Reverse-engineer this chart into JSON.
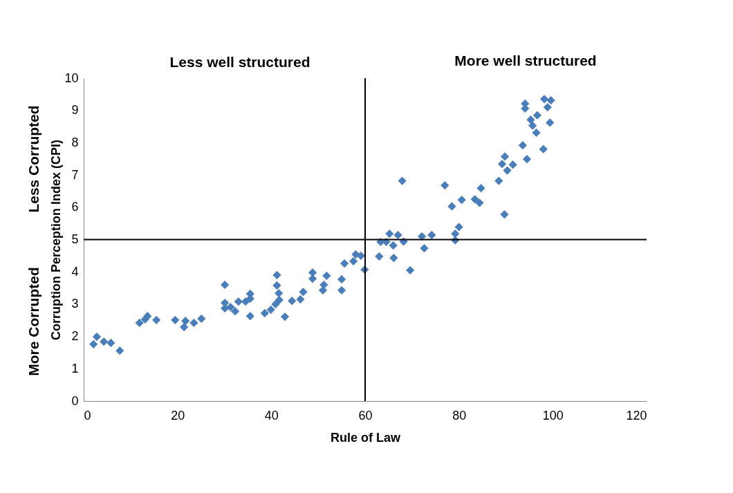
{
  "chart_data": {
    "type": "scatter",
    "xlabel": "Rule of Law",
    "ylabel": "Corruption Perception Index (CPI)",
    "annotations": [
      "Less well structured",
      "More well structured",
      "More Corrupted",
      "Less  Corrupted"
    ],
    "x": [
      2.1,
      2.8,
      4.3,
      5.8,
      7.7,
      11.9,
      13.1,
      13.6,
      15.5,
      19.5,
      21.4,
      21.7,
      23.5,
      25.1,
      30.1,
      30.1,
      30.1,
      31.3,
      32.3,
      33.0,
      34.5,
      35.5,
      35.5,
      35.5,
      38.6,
      39.9,
      40.9,
      41.2,
      41.2,
      41.6,
      41.7,
      42.9,
      44.4,
      46.2,
      46.8,
      48.8,
      48.8,
      51.0,
      51.2,
      51.8,
      55.0,
      55.0,
      55.6,
      57.5,
      58.0,
      59.1,
      59.9,
      63.0,
      63.3,
      64.5,
      65.2,
      66.0,
      66.1,
      67.0,
      67.9,
      68.2,
      69.6,
      72.1,
      72.6,
      74.2,
      77.0,
      78.5,
      79.2,
      79.2,
      80.0,
      80.6,
      83.4,
      84.4,
      84.7,
      88.5,
      89.7,
      89.2,
      89.8,
      90.3,
      91.5,
      93.6,
      94.5,
      98.0,
      94.1,
      94.1,
      95.3,
      95.7,
      96.5,
      96.7,
      98.2,
      98.9,
      99.4,
      99.6
    ],
    "values": [
      1.76,
      1.99,
      1.84,
      1.8,
      1.56,
      2.42,
      2.53,
      2.63,
      2.51,
      2.51,
      2.29,
      2.48,
      2.42,
      2.55,
      3.6,
      3.04,
      2.87,
      2.91,
      2.78,
      3.08,
      3.08,
      3.32,
      3.17,
      2.63,
      2.72,
      2.83,
      3.0,
      3.9,
      3.58,
      3.34,
      3.13,
      2.61,
      3.1,
      3.15,
      3.38,
      3.98,
      3.79,
      3.43,
      3.6,
      3.88,
      3.43,
      3.77,
      4.26,
      4.33,
      4.54,
      4.5,
      4.07,
      4.48,
      4.93,
      4.93,
      5.18,
      4.82,
      4.43,
      5.14,
      6.82,
      4.94,
      4.05,
      5.1,
      4.73,
      5.14,
      6.68,
      6.03,
      5.18,
      4.98,
      5.39,
      6.23,
      6.25,
      6.14,
      6.59,
      6.82,
      5.78,
      7.34,
      7.57,
      7.14,
      7.32,
      7.92,
      7.49,
      7.8,
      9.21,
      9.06,
      8.71,
      8.53,
      8.31,
      8.85,
      9.35,
      9.1,
      8.62,
      9.31
    ],
    "color": "#4a7ebb",
    "marker": "diamond",
    "xlim": [
      0,
      120
    ],
    "xticks": [
      0,
      20,
      40,
      60,
      80,
      100,
      120
    ],
    "ylim": [
      0,
      10
    ],
    "yticks": [
      0,
      1,
      2,
      3,
      4,
      5,
      6,
      7,
      8,
      9,
      10
    ],
    "ref_lines": [
      {
        "axis": "x",
        "value": 60,
        "color": "#000000"
      },
      {
        "axis": "y",
        "value": 5,
        "color": "#000000"
      }
    ],
    "grid": false
  }
}
